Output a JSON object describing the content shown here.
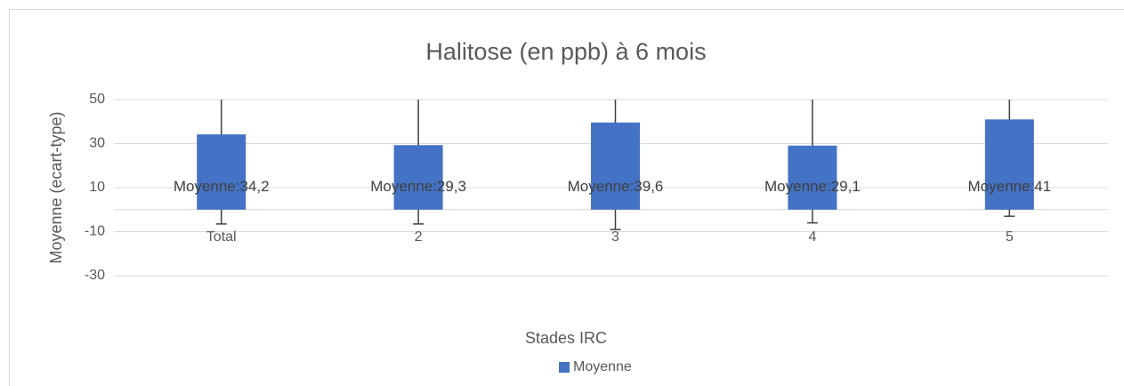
{
  "chart_data": {
    "type": "bar",
    "title": "Halitose (en ppb) à 6 mois",
    "x_label": "Stades IRC",
    "y_label": "Moyenne (ecart-type)",
    "categories": [
      "Total",
      "2",
      "3",
      "4",
      "5"
    ],
    "series": [
      {
        "name": "Moyenne",
        "color": "#4472c4",
        "values": [
          34.2,
          29.3,
          39.6,
          29.1,
          41
        ],
        "errors": [
          40.7,
          35.8,
          48.6,
          35.1,
          44
        ],
        "value_labels": [
          "Moyenne:34,2",
          "Moyenne:29,3",
          "Moyenne:39,6",
          "Moyenne:29,1",
          "Moyenne:41"
        ]
      }
    ],
    "ylim": [
      -30,
      50
    ],
    "yticks": [
      -30,
      -10,
      10,
      30,
      50
    ],
    "grid": true,
    "legend": "bottom"
  }
}
